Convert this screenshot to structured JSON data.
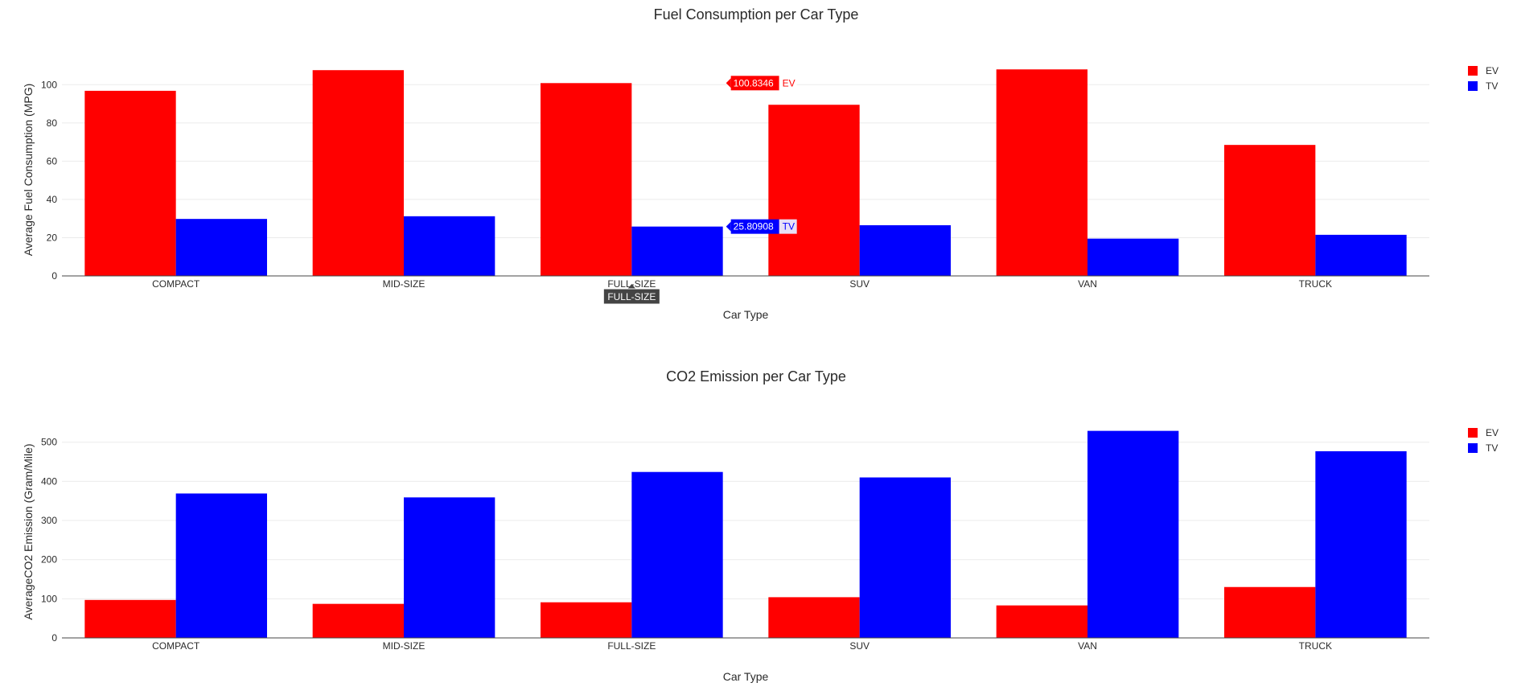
{
  "colors": {
    "EV": "#ff0000",
    "TV": "#0000ff",
    "grid": "#ebebeb",
    "axis": "#444444"
  },
  "chart_data": [
    {
      "type": "bar",
      "title": "Fuel Consumption per Car Type",
      "xlabel": "Car Type",
      "ylabel": "Average Fuel Consumption (MPG)",
      "categories": [
        "COMPACT",
        "MID-SIZE",
        "FULL-SIZE",
        "SUV",
        "VAN",
        "TRUCK"
      ],
      "series": [
        {
          "name": "EV",
          "values": [
            96.8,
            107.6,
            100.8346,
            89.5,
            108.0,
            68.5
          ]
        },
        {
          "name": "TV",
          "values": [
            29.8,
            31.2,
            25.80908,
            26.5,
            19.5,
            21.5
          ]
        }
      ],
      "ylim": [
        0,
        114
      ],
      "yticks": [
        0,
        20,
        40,
        60,
        80,
        100
      ],
      "grid": true,
      "legend": "top-right",
      "hover": {
        "category": "FULL-SIZE",
        "labels": [
          {
            "series": "EV",
            "value_text": "100.8346"
          },
          {
            "series": "TV",
            "value_text": "25.80908"
          }
        ]
      }
    },
    {
      "type": "bar",
      "title": "CO2 Emission per Car Type",
      "xlabel": "Car Type",
      "ylabel": "AverageCO2 Emission (Gram/Mile)",
      "categories": [
        "COMPACT",
        "MID-SIZE",
        "FULL-SIZE",
        "SUV",
        "VAN",
        "TRUCK"
      ],
      "series": [
        {
          "name": "EV",
          "values": [
            97,
            87,
            91,
            104,
            83,
            130
          ]
        },
        {
          "name": "TV",
          "values": [
            369,
            359,
            424,
            410,
            529,
            477
          ]
        }
      ],
      "ylim": [
        0,
        557
      ],
      "yticks": [
        0,
        100,
        200,
        300,
        400,
        500
      ],
      "grid": true,
      "legend": "top-right"
    }
  ]
}
